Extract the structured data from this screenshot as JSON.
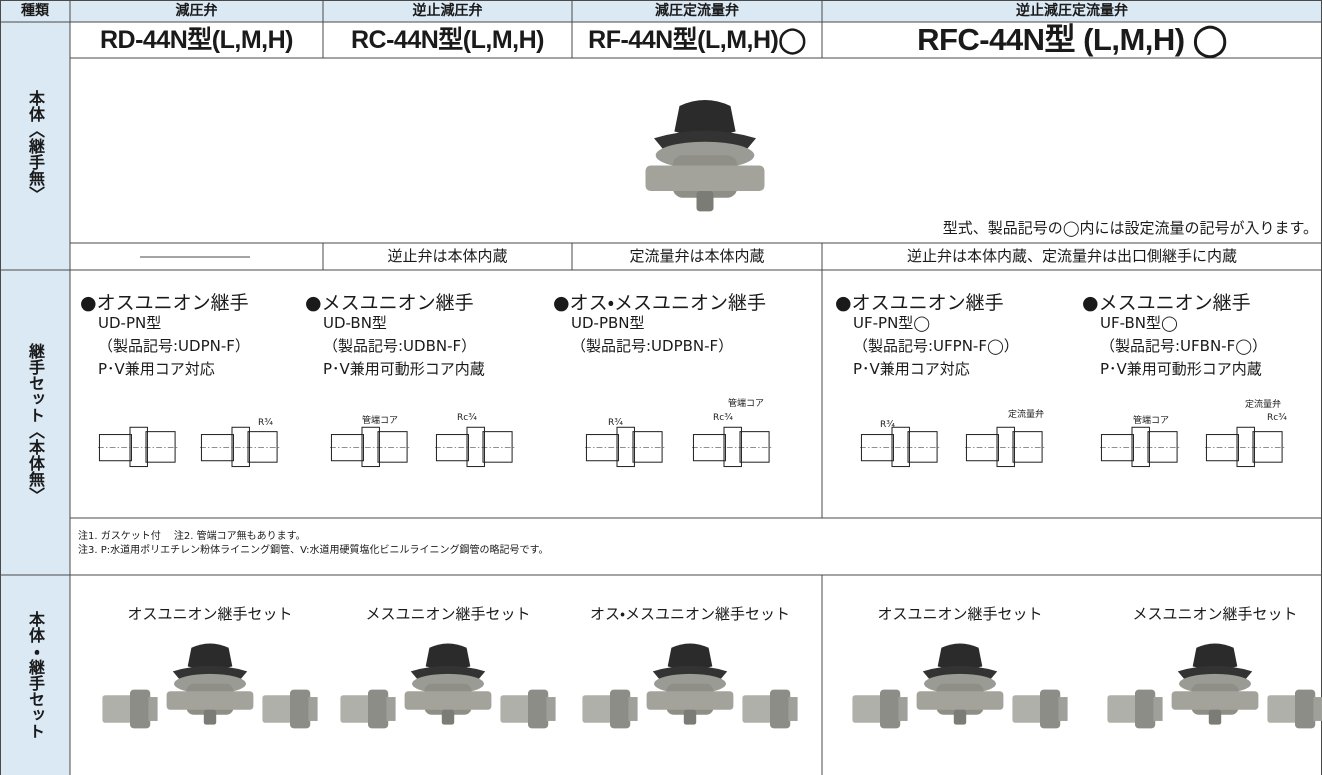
{
  "table": {
    "header": [
      "種類",
      "減圧弁",
      "逆止減圧弁",
      "減圧定流量弁",
      "逆止減圧定流量弁"
    ],
    "row_labels": [
      "本体〈継手無〉",
      "継手セット〈本体無〉",
      "本体・継手セット"
    ],
    "models": [
      "RD-44N型(L,M,H)",
      "RC-44N型(L,M,H)",
      "RF-44N型(L,M,H)◯",
      "RFC-44N型 (L,M,H) ◯"
    ],
    "body_note": "型式、製品記号の◯内には設定流量の記号が入ります。",
    "builtin": [
      "逆止弁は本体内蔵",
      "定流量弁は本体内蔵",
      "逆止弁は本体内蔵、定流量弁は出口側継手に内蔵"
    ],
    "joints": [
      {
        "title": "●オスユニオン継手",
        "model": "UD-PN型",
        "code": "（製品記号:UDPN-F）",
        "compat": "P･V兼用コア対応",
        "labels": [
          "R¾"
        ]
      },
      {
        "title": "●メスユニオン継手",
        "model": "UD-BN型",
        "code": "（製品記号:UDBN-F）",
        "compat": "P･V兼用可動形コア内蔵",
        "labels": [
          "管端コア",
          "Rc¾"
        ]
      },
      {
        "title": "●オス・メスユニオン継手",
        "model": "UD-PBN型",
        "code": "（製品記号:UDPBN-F）",
        "labels": [
          "R¾",
          "管端コア",
          "Rc¾"
        ]
      },
      {
        "title": "●オスユニオン継手",
        "model": "UF-PN型◯",
        "code": "（製品記号:UFPN-F◯）",
        "compat": "P･V兼用コア対応",
        "labels": [
          "R¾",
          "定流量弁"
        ]
      },
      {
        "title": "●メスユニオン継手",
        "model": "UF-BN型◯",
        "code": "（製品記号:UFBN-F◯）",
        "compat": "P･V兼用可動形コア内蔵",
        "labels": [
          "管端コア",
          "定流量弁",
          "Rc¾"
        ]
      }
    ],
    "notes": [
      "注1. ガスケット付　 注2. 管端コア無もあります。",
      "注3. P:水道用ポリエチレン粉体ライニング鋼管、V:水道用硬質塩化ビニルライニング鋼管の略記号です。"
    ],
    "sets": [
      "オスユニオン継手セット",
      "メスユニオン継手セット",
      "オス・メスユニオン継手セット",
      "オスユニオン継手セット",
      "メスユニオン継手セット"
    ]
  }
}
